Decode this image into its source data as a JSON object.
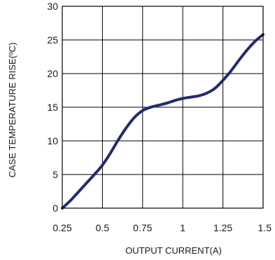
{
  "chart_data": {
    "type": "line",
    "title": "",
    "xlabel": "OUTPUT CURRENT(A)",
    "ylabel": "CASE TEMPERATURE RISE(ºC)",
    "xlim": [
      0.25,
      1.5
    ],
    "ylim": [
      0,
      30
    ],
    "x_ticks": [
      0.25,
      0.5,
      0.75,
      1,
      1.25,
      1.5
    ],
    "x_tick_labels": [
      "0.25",
      "0.5",
      "0.75",
      "1",
      "1.25",
      "1.5"
    ],
    "y_ticks": [
      0,
      5,
      10,
      15,
      20,
      25,
      30
    ],
    "y_tick_labels": [
      "0",
      "5",
      "10",
      "15",
      "20",
      "25",
      "30"
    ],
    "grid": true,
    "series": [
      {
        "color": "#232a6e",
        "x": [
          0.25,
          0.3,
          0.35,
          0.4,
          0.45,
          0.5,
          0.55,
          0.6,
          0.65,
          0.7,
          0.75,
          0.8,
          0.85,
          0.9,
          0.95,
          1.0,
          1.05,
          1.1,
          1.15,
          1.2,
          1.25,
          1.3,
          1.35,
          1.4,
          1.45,
          1.5
        ],
        "y": [
          0.0,
          1.1,
          2.4,
          3.7,
          5.0,
          6.4,
          8.2,
          10.2,
          12.0,
          13.5,
          14.5,
          15.0,
          15.3,
          15.6,
          16.0,
          16.3,
          16.5,
          16.7,
          17.1,
          17.8,
          19.0,
          20.4,
          22.0,
          23.5,
          24.8,
          25.8
        ]
      }
    ]
  }
}
